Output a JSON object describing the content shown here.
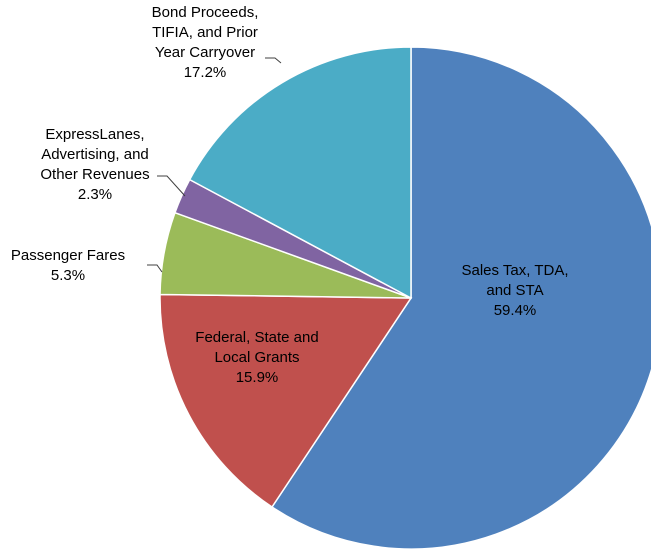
{
  "chart_data": {
    "type": "pie",
    "title": "",
    "legend": "none",
    "slices": [
      {
        "label": [
          "Sales Tax, TDA,",
          "and STA"
        ],
        "value": 59.4,
        "value_label": "59.4%",
        "color": "#4F81BD"
      },
      {
        "label": [
          "Federal, State and",
          "Local Grants"
        ],
        "value": 15.9,
        "value_label": "15.9%",
        "color": "#C0504D"
      },
      {
        "label": [
          "Passenger Fares"
        ],
        "value": 5.3,
        "value_label": "5.3%",
        "color": "#9BBB59"
      },
      {
        "label": [
          "ExpressLanes,",
          "Advertising, and",
          "Other Revenues"
        ],
        "value": 2.3,
        "value_label": "2.3%",
        "color": "#8064A2"
      },
      {
        "label": [
          "Bond Proceeds,",
          "TIFIA,  and Prior",
          "Year Carryover"
        ],
        "value": 17.2,
        "value_label": "17.2%",
        "color": "#4BACC6"
      }
    ]
  }
}
